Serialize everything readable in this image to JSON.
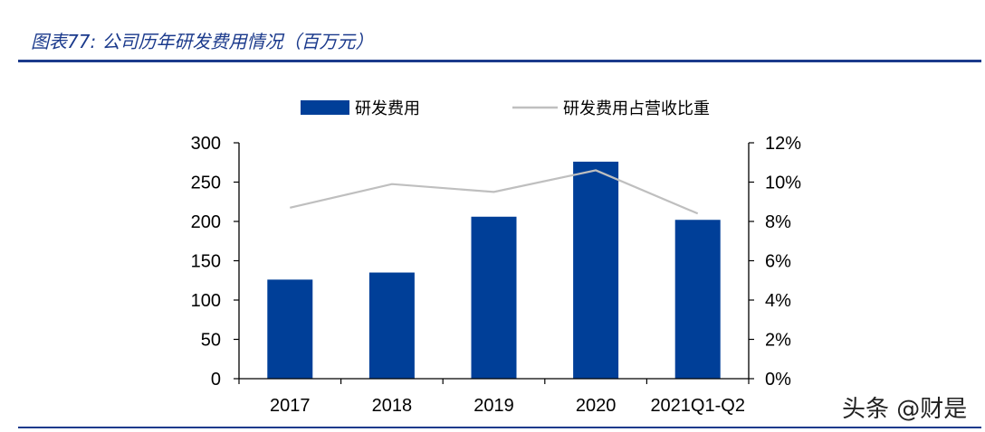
{
  "figure": {
    "title": "图表77: 公司历年研发费用情况（百万元）",
    "watermark": "头条 @财是"
  },
  "chart_data": {
    "type": "bar",
    "categories": [
      "2017",
      "2018",
      "2019",
      "2020",
      "2021Q1-Q2"
    ],
    "series": [
      {
        "name": "研发费用",
        "type": "bar",
        "axis": "left",
        "color": "#003f98",
        "values": [
          126,
          135,
          206,
          276,
          202
        ]
      },
      {
        "name": "研发费用占营收比重",
        "type": "line",
        "axis": "right",
        "color": "#bfbfbf",
        "values": [
          8.7,
          9.9,
          9.5,
          10.6,
          8.4
        ]
      }
    ],
    "ylim_left": [
      0,
      300
    ],
    "yticks_left": [
      "0",
      "50",
      "100",
      "150",
      "200",
      "250",
      "300"
    ],
    "ylim_right": [
      0,
      12
    ],
    "yticks_right": [
      "0%",
      "2%",
      "4%",
      "6%",
      "8%",
      "10%",
      "12%"
    ],
    "legend_position": "top",
    "grid": false
  }
}
